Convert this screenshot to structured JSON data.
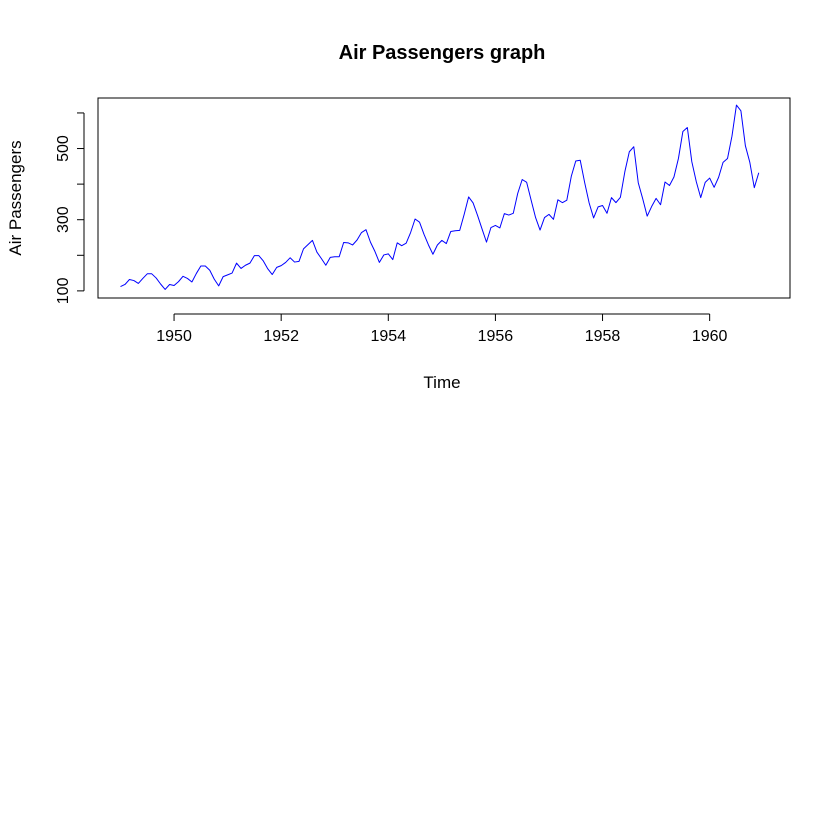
{
  "chart_data": {
    "type": "line",
    "title": "Air Passengers graph",
    "xlabel": "Time",
    "ylabel": "Air Passengers",
    "xlim": [
      1948.58,
      1961.5
    ],
    "ylim": [
      80,
      642
    ],
    "x_ticks": [
      1950,
      1952,
      1954,
      1956,
      1958,
      1960
    ],
    "x_tick_labels": [
      "1950",
      "1952",
      "1954",
      "1956",
      "1958",
      "1960"
    ],
    "y_ticks": [
      100,
      200,
      300,
      400,
      500,
      600
    ],
    "y_tick_labels": [
      "100",
      "",
      "300",
      "",
      "500",
      ""
    ],
    "grid": false,
    "legend": "none",
    "series": [
      {
        "color": "#0000ff",
        "x_start": 1949,
        "frequency": 12,
        "values": [
          112,
          118,
          132,
          129,
          121,
          135,
          148,
          148,
          136,
          119,
          104,
          118,
          115,
          126,
          141,
          135,
          125,
          149,
          170,
          170,
          158,
          133,
          114,
          140,
          145,
          150,
          178,
          163,
          172,
          178,
          199,
          199,
          184,
          162,
          146,
          166,
          171,
          180,
          193,
          181,
          183,
          218,
          230,
          242,
          209,
          191,
          172,
          194,
          196,
          196,
          236,
          235,
          229,
          243,
          264,
          272,
          237,
          211,
          180,
          201,
          204,
          188,
          235,
          227,
          234,
          264,
          302,
          293,
          259,
          229,
          203,
          229,
          242,
          233,
          267,
          269,
          270,
          315,
          364,
          347,
          312,
          274,
          237,
          278,
          284,
          277,
          317,
          313,
          318,
          374,
          413,
          405,
          355,
          306,
          271,
          306,
          315,
          301,
          356,
          348,
          355,
          422,
          465,
          467,
          404,
          347,
          305,
          336,
          340,
          318,
          362,
          348,
          363,
          435,
          491,
          505,
          404,
          359,
          310,
          337,
          360,
          342,
          406,
          396,
          420,
          472,
          548,
          559,
          463,
          407,
          362,
          405,
          417,
          391,
          419,
          461,
          472,
          535,
          622,
          606,
          508,
          461,
          390,
          432
        ]
      }
    ]
  }
}
